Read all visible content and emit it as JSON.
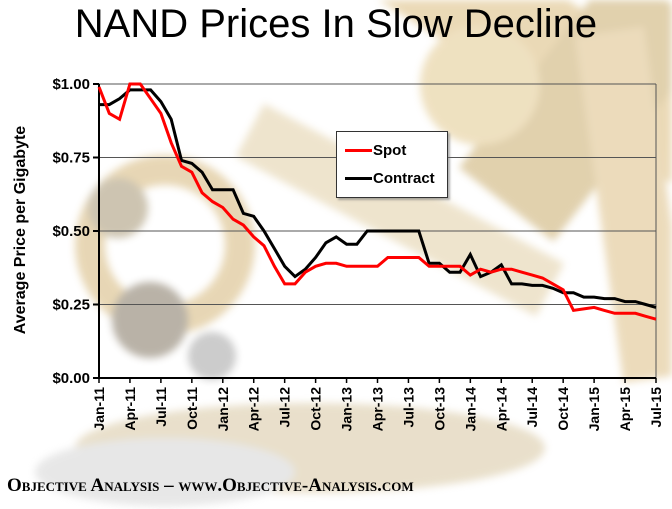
{
  "title": "NAND Prices In Slow Decline",
  "footer": {
    "text": "Objective Analysis – www.Objective-Analysis.com"
  },
  "legend": {
    "items": [
      {
        "label": "Spot",
        "color": "#ff0000"
      },
      {
        "label": "Contract",
        "color": "#000000"
      }
    ]
  },
  "background": {
    "description": "faded gold microscope photo"
  },
  "chart_data": {
    "type": "line",
    "title": "NAND Prices In Slow Decline",
    "xlabel": "",
    "ylabel": "Average Price per Gigabyte",
    "ylim": [
      0,
      1.0
    ],
    "ytick_values": [
      0,
      0.25,
      0.5,
      0.75,
      1.0
    ],
    "ytick_labels": [
      "$0.00",
      "$0.25",
      "$0.50",
      "$0.75",
      "$1.00"
    ],
    "grid": true,
    "legend_position": "upper-center",
    "xtick_every": 3,
    "x_months": [
      "Jan-11",
      "Feb-11",
      "Mar-11",
      "Apr-11",
      "May-11",
      "Jun-11",
      "Jul-11",
      "Aug-11",
      "Sep-11",
      "Oct-11",
      "Nov-11",
      "Dec-11",
      "Jan-12",
      "Feb-12",
      "Mar-12",
      "Apr-12",
      "May-12",
      "Jun-12",
      "Jul-12",
      "Aug-12",
      "Sep-12",
      "Oct-12",
      "Nov-12",
      "Dec-12",
      "Jan-13",
      "Feb-13",
      "Mar-13",
      "Apr-13",
      "May-13",
      "Jun-13",
      "Jul-13",
      "Aug-13",
      "Sep-13",
      "Oct-13",
      "Nov-13",
      "Dec-13",
      "Jan-14",
      "Feb-14",
      "Mar-14",
      "Apr-14",
      "May-14",
      "Jun-14",
      "Jul-14",
      "Aug-14",
      "Sep-14",
      "Oct-14",
      "Nov-14",
      "Dec-14",
      "Jan-15",
      "Feb-15",
      "Mar-15",
      "Apr-15",
      "May-15",
      "Jun-15",
      "Jul-15"
    ],
    "series": [
      {
        "name": "Spot",
        "color": "#ff0000",
        "values": [
          0.99,
          0.9,
          0.88,
          1.0,
          1.0,
          0.95,
          0.9,
          0.8,
          0.72,
          0.7,
          0.63,
          0.6,
          0.58,
          0.54,
          0.52,
          0.48,
          0.45,
          0.38,
          0.32,
          0.32,
          0.36,
          0.38,
          0.39,
          0.39,
          0.38,
          0.38,
          0.38,
          0.38,
          0.41,
          0.41,
          0.41,
          0.41,
          0.38,
          0.38,
          0.38,
          0.38,
          0.35,
          0.37,
          0.36,
          0.37,
          0.37,
          0.36,
          0.35,
          0.34,
          0.32,
          0.3,
          0.23,
          0.235,
          0.24,
          0.23,
          0.22,
          0.22,
          0.22,
          0.21,
          0.2
        ]
      },
      {
        "name": "Contract",
        "color": "#000000",
        "values": [
          0.93,
          0.93,
          0.95,
          0.98,
          0.98,
          0.98,
          0.94,
          0.88,
          0.74,
          0.73,
          0.7,
          0.64,
          0.64,
          0.64,
          0.56,
          0.55,
          0.5,
          0.44,
          0.38,
          0.345,
          0.37,
          0.41,
          0.46,
          0.48,
          0.455,
          0.455,
          0.5,
          0.5,
          0.5,
          0.5,
          0.5,
          0.5,
          0.39,
          0.39,
          0.36,
          0.36,
          0.42,
          0.345,
          0.36,
          0.385,
          0.32,
          0.32,
          0.315,
          0.315,
          0.305,
          0.29,
          0.29,
          0.275,
          0.275,
          0.27,
          0.27,
          0.26,
          0.26,
          0.25,
          0.24
        ]
      }
    ]
  }
}
